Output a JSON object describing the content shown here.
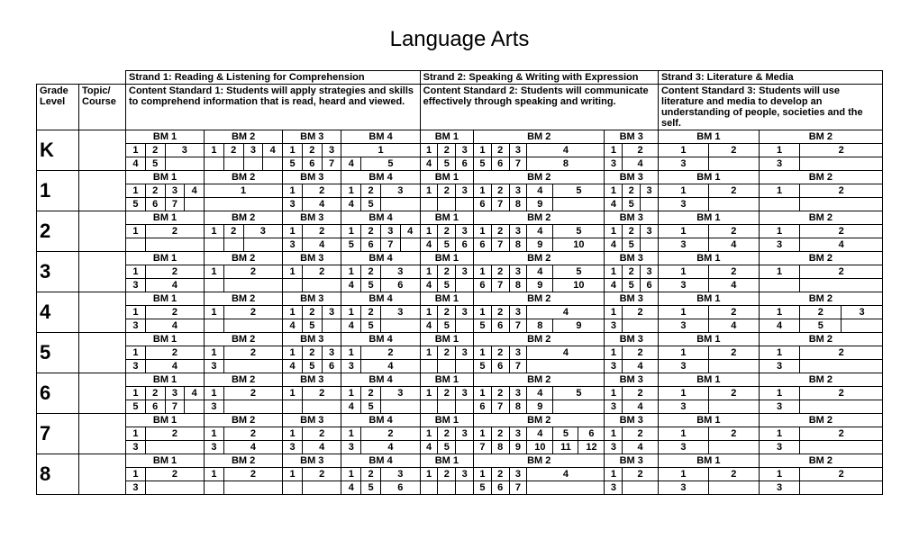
{
  "title": "Language Arts",
  "headers": {
    "grade": "Grade Level",
    "topic": "Topic/ Course",
    "strand1": "Strand 1: Reading & Listening for Comprehension",
    "strand2": "Strand 2:  Speaking & Writing with Expression",
    "strand3": "Strand 3:  Literature & Media",
    "cs1": "Content Standard 1:  Students will apply strategies and skills to comprehend information that is read, heard and viewed.",
    "cs2": "Content Standard 2:  Students will communicate effectively through speaking and writing.",
    "cs3": "Content Standard 3:  Students will use literature and media to develop an understanding of people, societies and the self."
  },
  "bm_labels": [
    "BM 1",
    "BM 2",
    "BM 3",
    "BM 4"
  ],
  "grades": [
    "K",
    "1",
    "2",
    "3",
    "4",
    "5",
    "6",
    "7",
    "8"
  ],
  "rows": [
    {
      "grade": "K",
      "r1": {
        "s1b1": [
          "1",
          "2",
          "3"
        ],
        "s1b2": [
          "1",
          "2",
          "3",
          "4"
        ],
        "s1b3": [
          "1",
          "2",
          "3"
        ],
        "s1b4": [
          "1"
        ],
        "s2b1": [
          "1",
          "2",
          "3"
        ],
        "s2b2": [
          "1",
          "2",
          "3",
          "4"
        ],
        "s2b3": [
          "1",
          "2"
        ],
        "s3b1": [
          "1",
          "2"
        ],
        "s3b2": [
          "1",
          "2"
        ]
      },
      "r2": {
        "s1b1": [
          "4",
          "5",
          ""
        ],
        "s1b2": [
          "",
          "",
          "",
          ""
        ],
        "s1b3": [
          "5",
          "6",
          "7"
        ],
        "s1b4": [
          "4",
          "5"
        ],
        "s2b1": [
          "4",
          "5",
          "6"
        ],
        "s2b2": [
          "5",
          "6",
          "7",
          "8"
        ],
        "s2b3": [
          "3",
          "4"
        ],
        "s3b1": [
          "3",
          ""
        ],
        "s3b2": [
          "3",
          ""
        ]
      }
    },
    {
      "grade": "1",
      "r1": {
        "s1b1": [
          "1",
          "2",
          "3",
          "4"
        ],
        "s1b2": [
          "1"
        ],
        "s1b3": [
          "1",
          "2"
        ],
        "s1b4": [
          "1",
          "2",
          "3"
        ],
        "s2b1": [
          "1",
          "2",
          "3"
        ],
        "s2b2": [
          "1",
          "2",
          "3",
          "4",
          "5"
        ],
        "s2b3": [
          "1",
          "2",
          "3"
        ],
        "s3b1": [
          "1",
          "2"
        ],
        "s3b2": [
          "1",
          "2"
        ]
      },
      "r2": {
        "s1b1": [
          "5",
          "6",
          "7",
          ""
        ],
        "s1b2": [
          ""
        ],
        "s1b3": [
          "3",
          "4"
        ],
        "s1b4": [
          "4",
          "5",
          ""
        ],
        "s2b1": [
          "",
          "",
          ""
        ],
        "s2b2": [
          "6",
          "7",
          "8",
          "9",
          ""
        ],
        "s2b3": [
          "4",
          "5",
          ""
        ],
        "s3b1": [
          "3",
          ""
        ],
        "s3b2": [
          "",
          ""
        ]
      }
    },
    {
      "grade": "2",
      "r1": {
        "s1b1": [
          "1",
          "2"
        ],
        "s1b2": [
          "1",
          "2",
          "3"
        ],
        "s1b3": [
          "1",
          "2"
        ],
        "s1b4": [
          "1",
          "2",
          "3",
          "4"
        ],
        "s2b1": [
          "1",
          "2",
          "3"
        ],
        "s2b2": [
          "1",
          "2",
          "3",
          "4",
          "5"
        ],
        "s2b3": [
          "1",
          "2",
          "3"
        ],
        "s3b1": [
          "1",
          "2"
        ],
        "s3b2": [
          "1",
          "2"
        ]
      },
      "r2": {
        "s1b1": [
          "",
          ""
        ],
        "s1b2": [
          "",
          "",
          ""
        ],
        "s1b3": [
          "3",
          "4"
        ],
        "s1b4": [
          "5",
          "6",
          "7",
          ""
        ],
        "s2b1": [
          "4",
          "5",
          "6"
        ],
        "s2b2": [
          "6",
          "7",
          "8",
          "9",
          "10"
        ],
        "s2b3": [
          "4",
          "5",
          ""
        ],
        "s3b1": [
          "3",
          "4"
        ],
        "s3b2": [
          "3",
          "4"
        ]
      }
    },
    {
      "grade": "3",
      "r1": {
        "s1b1": [
          "1",
          "2"
        ],
        "s1b2": [
          "1",
          "2"
        ],
        "s1b3": [
          "1",
          "2"
        ],
        "s1b4": [
          "1",
          "2",
          "3"
        ],
        "s2b1": [
          "1",
          "2",
          "3"
        ],
        "s2b2": [
          "1",
          "2",
          "3",
          "4",
          "5"
        ],
        "s2b3": [
          "1",
          "2",
          "3"
        ],
        "s3b1": [
          "1",
          "2"
        ],
        "s3b2": [
          "1",
          "2"
        ]
      },
      "r2": {
        "s1b1": [
          "3",
          "4"
        ],
        "s1b2": [
          "",
          ""
        ],
        "s1b3": [
          "",
          ""
        ],
        "s1b4": [
          "4",
          "5",
          "6"
        ],
        "s2b1": [
          "4",
          "5",
          ""
        ],
        "s2b2": [
          "6",
          "7",
          "8",
          "9",
          "10"
        ],
        "s2b3": [
          "4",
          "5",
          "6"
        ],
        "s3b1": [
          "3",
          "4"
        ],
        "s3b2": [
          "",
          ""
        ]
      }
    },
    {
      "grade": "4",
      "r1": {
        "s1b1": [
          "1",
          "2"
        ],
        "s1b2": [
          "1",
          "2"
        ],
        "s1b3": [
          "1",
          "2",
          "3"
        ],
        "s1b4": [
          "1",
          "2",
          "3"
        ],
        "s2b1": [
          "1",
          "2",
          "3"
        ],
        "s2b2": [
          "1",
          "2",
          "3",
          "4"
        ],
        "s2b3": [
          "1",
          "2"
        ],
        "s3b1": [
          "1",
          "2"
        ],
        "s3b2": [
          "1",
          "2",
          "3"
        ]
      },
      "r2": {
        "s1b1": [
          "3",
          "4"
        ],
        "s1b2": [
          "",
          ""
        ],
        "s1b3": [
          "4",
          "5",
          ""
        ],
        "s1b4": [
          "4",
          "5",
          ""
        ],
        "s2b1": [
          "4",
          "5",
          ""
        ],
        "s2b2": [
          "5",
          "6",
          "7",
          "8",
          "9"
        ],
        "s2b3": [
          "3",
          ""
        ],
        "s3b1": [
          "3",
          "4"
        ],
        "s3b2": [
          "4",
          "5",
          ""
        ]
      }
    },
    {
      "grade": "5",
      "r1": {
        "s1b1": [
          "1",
          "2"
        ],
        "s1b2": [
          "1",
          "2"
        ],
        "s1b3": [
          "1",
          "2",
          "3"
        ],
        "s1b4": [
          "1",
          "2"
        ],
        "s2b1": [
          "1",
          "2",
          "3"
        ],
        "s2b2": [
          "1",
          "2",
          "3",
          "4"
        ],
        "s2b3": [
          "1",
          "2"
        ],
        "s3b1": [
          "1",
          "2"
        ],
        "s3b2": [
          "1",
          "2"
        ]
      },
      "r2": {
        "s1b1": [
          "3",
          "4"
        ],
        "s1b2": [
          "3",
          ""
        ],
        "s1b3": [
          "4",
          "5",
          "6"
        ],
        "s1b4": [
          "3",
          "4"
        ],
        "s2b1": [
          "",
          "",
          ""
        ],
        "s2b2": [
          "5",
          "6",
          "7",
          ""
        ],
        "s2b3": [
          "3",
          "4"
        ],
        "s3b1": [
          "3",
          ""
        ],
        "s3b2": [
          "3",
          ""
        ]
      }
    },
    {
      "grade": "6",
      "r1": {
        "s1b1": [
          "1",
          "2",
          "3",
          "4"
        ],
        "s1b2": [
          "1",
          "2"
        ],
        "s1b3": [
          "1",
          "2"
        ],
        "s1b4": [
          "1",
          "2",
          "3"
        ],
        "s2b1": [
          "1",
          "2",
          "3"
        ],
        "s2b2": [
          "1",
          "2",
          "3",
          "4",
          "5"
        ],
        "s2b3": [
          "1",
          "2"
        ],
        "s3b1": [
          "1",
          "2"
        ],
        "s3b2": [
          "1",
          "2"
        ]
      },
      "r2": {
        "s1b1": [
          "5",
          "6",
          "7",
          ""
        ],
        "s1b2": [
          "3",
          ""
        ],
        "s1b3": [
          "",
          ""
        ],
        "s1b4": [
          "4",
          "5",
          ""
        ],
        "s2b1": [
          "",
          "",
          ""
        ],
        "s2b2": [
          "6",
          "7",
          "8",
          "9",
          ""
        ],
        "s2b3": [
          "3",
          "4"
        ],
        "s3b1": [
          "3",
          ""
        ],
        "s3b2": [
          "3",
          ""
        ]
      }
    },
    {
      "grade": "7",
      "r1": {
        "s1b1": [
          "1",
          "2"
        ],
        "s1b2": [
          "1",
          "2"
        ],
        "s1b3": [
          "1",
          "2"
        ],
        "s1b4": [
          "1",
          "2"
        ],
        "s2b1": [
          "1",
          "2",
          "3"
        ],
        "s2b2": [
          "1",
          "2",
          "3",
          "4",
          "5",
          "6"
        ],
        "s2b3": [
          "1",
          "2"
        ],
        "s3b1": [
          "1",
          "2"
        ],
        "s3b2": [
          "1",
          "2"
        ]
      },
      "r2": {
        "s1b1": [
          "3",
          ""
        ],
        "s1b2": [
          "3",
          "4"
        ],
        "s1b3": [
          "3",
          "4"
        ],
        "s1b4": [
          "3",
          "4"
        ],
        "s2b1": [
          "4",
          "5",
          ""
        ],
        "s2b2": [
          "7",
          "8",
          "9",
          "10",
          "11",
          "12"
        ],
        "s2b3": [
          "3",
          "4"
        ],
        "s3b1": [
          "3",
          ""
        ],
        "s3b2": [
          "3",
          ""
        ]
      }
    },
    {
      "grade": "8",
      "r1": {
        "s1b1": [
          "1",
          "2"
        ],
        "s1b2": [
          "1",
          "2"
        ],
        "s1b3": [
          "1",
          "2"
        ],
        "s1b4": [
          "1",
          "2",
          "3"
        ],
        "s2b1": [
          "1",
          "2",
          "3"
        ],
        "s2b2": [
          "1",
          "2",
          "3",
          "4"
        ],
        "s2b3": [
          "1",
          "2"
        ],
        "s3b1": [
          "1",
          "2"
        ],
        "s3b2": [
          "1",
          "2"
        ]
      },
      "r2": {
        "s1b1": [
          "3",
          ""
        ],
        "s1b2": [
          "",
          ""
        ],
        "s1b3": [
          "",
          ""
        ],
        "s1b4": [
          "4",
          "5",
          "6"
        ],
        "s2b1": [
          "",
          "",
          ""
        ],
        "s2b2": [
          "5",
          "6",
          "7",
          ""
        ],
        "s2b3": [
          "3",
          ""
        ],
        "s3b1": [
          "3",
          ""
        ],
        "s3b2": [
          "3",
          ""
        ]
      }
    }
  ]
}
